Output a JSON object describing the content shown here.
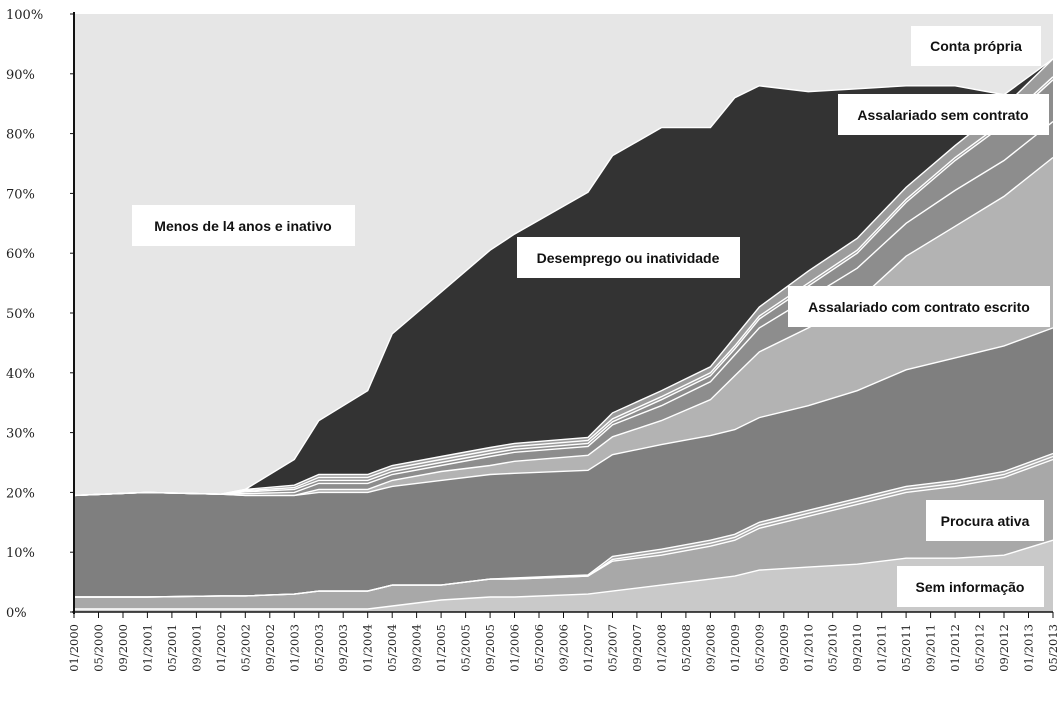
{
  "colors": {
    "background": "#e6e6e6",
    "sem_info": "#c9c9c9",
    "procura": "#a8a8a8",
    "menos14": "#e6e6e6",
    "assal_com": "#7f7f7f",
    "assal_com_light": "#b3b3b3",
    "assal_sem": "#8d8d8d",
    "conta_propria": "#9c9c9c",
    "desemprego": "#333333",
    "separator": "#ffffff"
  },
  "chart_data": {
    "type": "area",
    "stacked": true,
    "ylim": [
      0,
      100
    ],
    "yticks": [
      "0%",
      "10%",
      "20%",
      "30%",
      "40%",
      "50%",
      "60%",
      "70%",
      "80%",
      "90%",
      "100%"
    ],
    "x_ticks": [
      "01/2000",
      "05/2000",
      "09/2000",
      "01/2001",
      "05/2001",
      "09/2001",
      "01/2002",
      "05/2002",
      "09/2002",
      "01/2003",
      "05/2003",
      "09/2003",
      "01/2004",
      "05/2004",
      "09/2004",
      "01/2005",
      "05/2005",
      "09/2005",
      "01/2006",
      "05/2006",
      "09/2006",
      "01/2007",
      "05/2007",
      "09/2007",
      "01/2008",
      "05/2008",
      "09/2008",
      "01/2009",
      "05/2009",
      "09/2009",
      "01/2010",
      "05/2010",
      "09/2010",
      "01/2011",
      "05/2011",
      "09/2011",
      "01/2012",
      "05/2012",
      "09/2012",
      "01/2013",
      "05/2013"
    ],
    "x": [
      "01/2000",
      "01/2001",
      "01/2002",
      "05/2002",
      "01/2003",
      "05/2003",
      "01/2004",
      "05/2004",
      "01/2005",
      "09/2005",
      "01/2006",
      "01/2007",
      "05/2007",
      "01/2008",
      "09/2008",
      "01/2009",
      "05/2009",
      "01/2010",
      "09/2010",
      "05/2011",
      "01/2012",
      "09/2012",
      "05/2013"
    ],
    "series": [
      {
        "name": "Sem informação",
        "values": [
          0.5,
          0.5,
          0.5,
          0.5,
          0.5,
          0.5,
          0.5,
          1,
          2,
          2.5,
          2.5,
          3,
          3.5,
          4.5,
          5.5,
          6,
          7,
          7.5,
          8,
          9,
          9,
          9.5,
          12
        ]
      },
      {
        "name": "",
        "values": [
          2,
          2,
          2.2,
          2.2,
          2.5,
          3,
          3,
          3.5,
          2.5,
          3,
          3,
          3,
          5,
          5,
          5.5,
          6,
          7,
          8.5,
          10,
          11,
          12,
          13,
          13.5
        ]
      },
      {
        "name": "Procura ativa",
        "values": [
          0,
          0,
          0,
          0,
          0,
          0,
          0,
          0,
          0,
          0,
          0,
          0,
          0.3,
          0.5,
          0.5,
          0.5,
          0.5,
          0.5,
          0.5,
          0.5,
          0.5,
          0.5,
          0.5
        ]
      },
      {
        "name": "",
        "values": [
          0,
          0,
          0,
          0,
          0,
          0,
          0,
          0,
          0,
          0,
          0.2,
          0.2,
          0.5,
          0.5,
          0.5,
          0.5,
          0.5,
          0.5,
          0.5,
          0.5,
          0.5,
          0.5,
          0.5
        ]
      },
      {
        "name": "",
        "values": [
          17,
          17.5,
          17,
          16.8,
          16.5,
          16.5,
          16.5,
          16.5,
          17.5,
          17.5,
          17.5,
          17.5,
          17,
          17.5,
          17.5,
          17.5,
          17.5,
          17.5,
          18,
          19.5,
          20.5,
          21,
          21
        ]
      },
      {
        "name": "Assalariado com contrato escrito",
        "values": [
          0,
          0,
          0,
          0,
          0,
          0.5,
          0.5,
          1,
          1.5,
          1.5,
          2,
          2.5,
          3,
          4,
          6,
          9,
          11,
          13,
          15,
          19,
          22,
          25,
          28.5
        ]
      },
      {
        "name": "",
        "values": [
          0,
          0,
          0,
          0.3,
          0.5,
          1,
          1,
          1,
          1,
          1.5,
          1.5,
          1.5,
          2,
          2.5,
          3,
          3.5,
          4,
          5,
          5.5,
          5.5,
          6,
          6,
          6
        ]
      },
      {
        "name": "Assalariado sem contrato",
        "values": [
          0,
          0,
          0,
          0.3,
          0.5,
          0.5,
          0.5,
          0.5,
          0.5,
          0.5,
          0.5,
          0.5,
          0.5,
          1,
          1,
          1,
          1.5,
          2,
          2.5,
          3.5,
          5,
          6,
          7
        ]
      },
      {
        "name": "",
        "values": [
          0,
          0,
          0,
          0.2,
          0.3,
          0.5,
          0.5,
          0.5,
          0.5,
          0.5,
          0.5,
          0.5,
          0.5,
          0.5,
          0.5,
          0.5,
          0.5,
          0.5,
          0.5,
          0.5,
          0.5,
          0.5,
          0.5
        ]
      },
      {
        "name": "Conta própria",
        "values": [
          0,
          0,
          0,
          0.2,
          0.4,
          0.5,
          0.5,
          0.5,
          0.5,
          0.5,
          0.5,
          0.5,
          1,
          1,
          1,
          1.5,
          1.5,
          2,
          2,
          2,
          2,
          2.5,
          3
        ]
      },
      {
        "name": "Desemprego ou inatividade",
        "values": [
          0,
          0,
          0,
          0,
          4.3,
          9,
          14,
          22,
          27.5,
          33,
          35,
          41,
          43,
          44,
          40,
          40,
          37,
          30,
          25,
          17,
          10,
          2,
          0
        ]
      },
      {
        "name": "Menos de 14 anos e inativo",
        "values": [
          80.5,
          80,
          80.3,
          79.3,
          76.3,
          67.5,
          62.5,
          54,
          46.5,
          39.5,
          36.8,
          29.8,
          23.5,
          18.5,
          18.5,
          14,
          11,
          13,
          11,
          12,
          11.5,
          12.5,
          8
        ]
      }
    ],
    "labels": {
      "conta_propria": "Conta própria",
      "assal_sem": "Assalariado sem contrato",
      "menos14": "Menos de l4 anos e inativo",
      "desemprego": "Desemprego ou inatividade",
      "assal_com": "Assalariado com contrato escrito",
      "procura": "Procura ativa",
      "sem_info": "Sem informação"
    },
    "grid": false,
    "legend": "inline labels"
  }
}
